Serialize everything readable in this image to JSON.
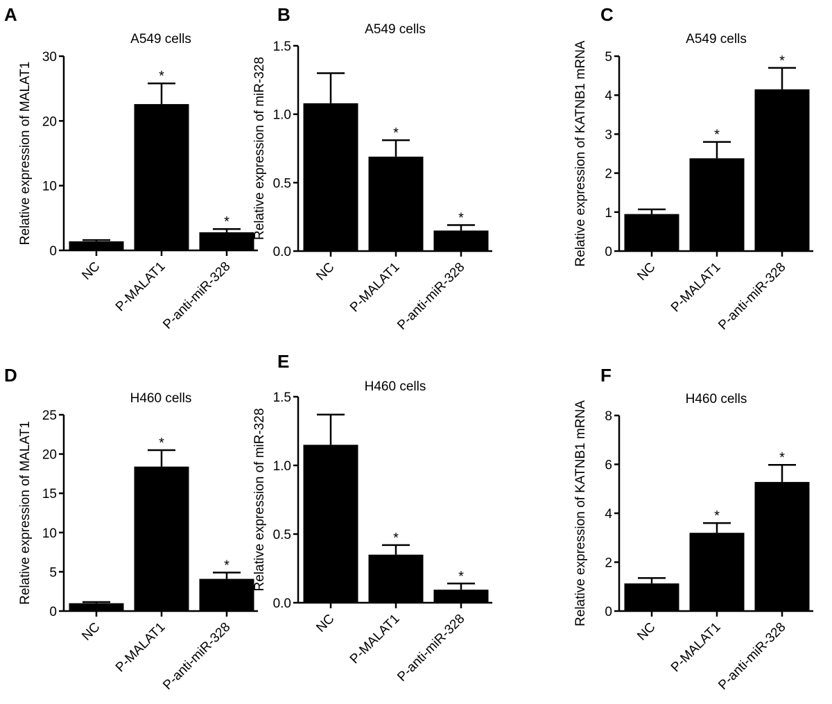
{
  "chart_data": [
    {
      "panel_label": "A",
      "type": "bar",
      "title": "A549 cells",
      "ylabel": "Relative expression of MALAT1",
      "categories": [
        "NC",
        "P-MALAT1",
        "P-anti-miR-328"
      ],
      "values": [
        1.4,
        22.6,
        2.8
      ],
      "error": [
        0.2,
        3.2,
        0.5
      ],
      "significance": [
        "",
        "*",
        "*"
      ],
      "ylim": [
        0,
        30
      ],
      "yticks": [
        "0",
        "10",
        "20",
        "30"
      ],
      "tick_values": [
        0,
        10,
        20,
        30
      ],
      "grid": false
    },
    {
      "panel_label": "B",
      "type": "bar",
      "title": "A549 cells",
      "ylabel": "Relative expression of miR-328",
      "categories": [
        "NC",
        "P-MALAT1",
        "P-anti-miR-328"
      ],
      "values": [
        1.08,
        0.69,
        0.15
      ],
      "error": [
        0.22,
        0.12,
        0.04
      ],
      "significance": [
        "",
        "*",
        "*"
      ],
      "ylim": [
        0,
        1.5
      ],
      "yticks": [
        "0.0",
        "0.5",
        "1.0",
        "1.5"
      ],
      "tick_values": [
        0,
        0.5,
        1,
        1.5
      ],
      "grid": false
    },
    {
      "panel_label": "C",
      "type": "bar",
      "title": "A549 cells",
      "ylabel": "Relative expression of KATNB1 mRNA",
      "categories": [
        "NC",
        "P-MALAT1",
        "P-anti-miR-328"
      ],
      "values": [
        0.95,
        2.38,
        4.15
      ],
      "error": [
        0.12,
        0.42,
        0.55
      ],
      "significance": [
        "",
        "*",
        "*"
      ],
      "ylim": [
        0,
        5
      ],
      "yticks": [
        "0",
        "1",
        "2",
        "3",
        "4",
        "5"
      ],
      "tick_values": [
        0,
        1,
        2,
        3,
        4,
        5
      ],
      "grid": false
    },
    {
      "panel_label": "D",
      "type": "bar",
      "title": "H460 cells",
      "ylabel": "Relative expression of MALAT1",
      "categories": [
        "NC",
        "P-MALAT1",
        "P-anti-miR-328"
      ],
      "values": [
        1.0,
        18.4,
        4.1
      ],
      "error": [
        0.15,
        2.1,
        0.8
      ],
      "significance": [
        "",
        "*",
        "*"
      ],
      "ylim": [
        0,
        25
      ],
      "yticks": [
        "0",
        "5",
        "10",
        "15",
        "20",
        "25"
      ],
      "tick_values": [
        0,
        5,
        10,
        15,
        20,
        25
      ],
      "grid": false
    },
    {
      "panel_label": "E",
      "type": "bar",
      "title": "H460 cells",
      "ylabel": "Relative expression of miR-328",
      "categories": [
        "NC",
        "P-MALAT1",
        "P-anti-miR-328"
      ],
      "values": [
        1.15,
        0.35,
        0.095
      ],
      "error": [
        0.22,
        0.07,
        0.045
      ],
      "significance": [
        "",
        "*",
        "*"
      ],
      "ylim": [
        0,
        1.5
      ],
      "yticks": [
        "0.0",
        "0.5",
        "1.0",
        "1.5"
      ],
      "tick_values": [
        0,
        0.5,
        1,
        1.5
      ],
      "grid": false
    },
    {
      "panel_label": "F",
      "type": "bar",
      "title": "H460 cells",
      "ylabel": "Relative expression of KATNB1 mRNA",
      "categories": [
        "NC",
        "P-MALAT1",
        "P-anti-miR-328"
      ],
      "values": [
        1.13,
        3.2,
        5.28
      ],
      "error": [
        0.22,
        0.4,
        0.7
      ],
      "significance": [
        "",
        "*",
        "*"
      ],
      "ylim": [
        0,
        8
      ],
      "yticks": [
        "0",
        "2",
        "4",
        "6",
        "8"
      ],
      "tick_values": [
        0,
        2,
        4,
        6,
        8
      ],
      "grid": false
    }
  ]
}
